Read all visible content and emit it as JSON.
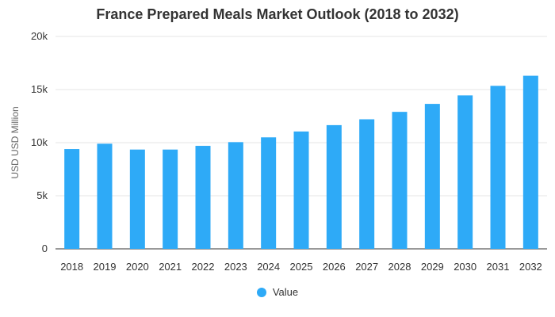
{
  "chart_data": {
    "type": "bar",
    "title": "France Prepared Meals Market Outlook (2018 to 2032)",
    "xlabel": "",
    "ylabel": "USD USD Million",
    "categories": [
      "2018",
      "2019",
      "2020",
      "2021",
      "2022",
      "2023",
      "2024",
      "2025",
      "2026",
      "2027",
      "2028",
      "2029",
      "2030",
      "2031",
      "2032"
    ],
    "series": [
      {
        "name": "Value",
        "values": [
          9400,
          9900,
          9350,
          9350,
          9700,
          10050,
          10500,
          11050,
          11650,
          12200,
          12900,
          13650,
          14450,
          15350,
          16300
        ]
      }
    ],
    "ylim": [
      0,
      20000
    ],
    "yticks": [
      0,
      5000,
      10000,
      15000,
      20000
    ],
    "ytick_labels": [
      "0",
      "5k",
      "10k",
      "15k",
      "20k"
    ],
    "grid": true,
    "legend_position": "bottom",
    "colors": {
      "bar": "#2eaaf7",
      "grid": "#e6e6e6",
      "axis": "#333333"
    }
  }
}
